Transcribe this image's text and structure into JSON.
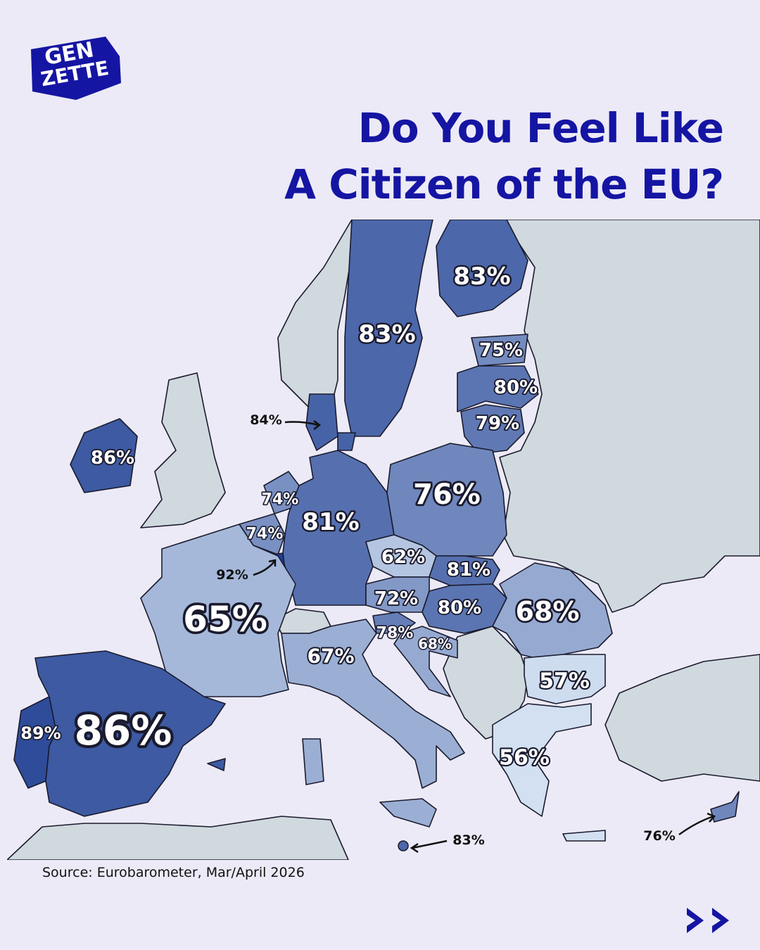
{
  "logo": [
    "GEN",
    "ZETTE"
  ],
  "title": [
    "Do You Feel Like",
    "A Citizen of the EU?"
  ],
  "source": "Source: Eurobarometer, Mar/April 2026",
  "chart_data": {
    "type": "choropleth",
    "values": [
      83,
      83,
      75,
      80,
      79,
      84,
      86,
      74,
      74,
      92,
      81,
      76,
      62,
      81,
      72,
      80,
      68,
      65,
      78,
      68,
      67,
      57,
      89,
      86,
      56,
      83,
      76
    ],
    "value_labels": [
      "83%",
      "83%",
      "75%",
      "80%",
      "79%",
      "84%",
      "86%",
      "74%",
      "74%",
      "92%",
      "81%",
      "76%",
      "62%",
      "81%",
      "72%",
      "80%",
      "68%",
      "65%",
      "78%",
      "68%",
      "67%",
      "57%",
      "89%",
      "86%",
      "56%",
      "83%",
      "76%"
    ],
    "color_low": "#d2e0f1",
    "color_high": "#1f3f92"
  }
}
